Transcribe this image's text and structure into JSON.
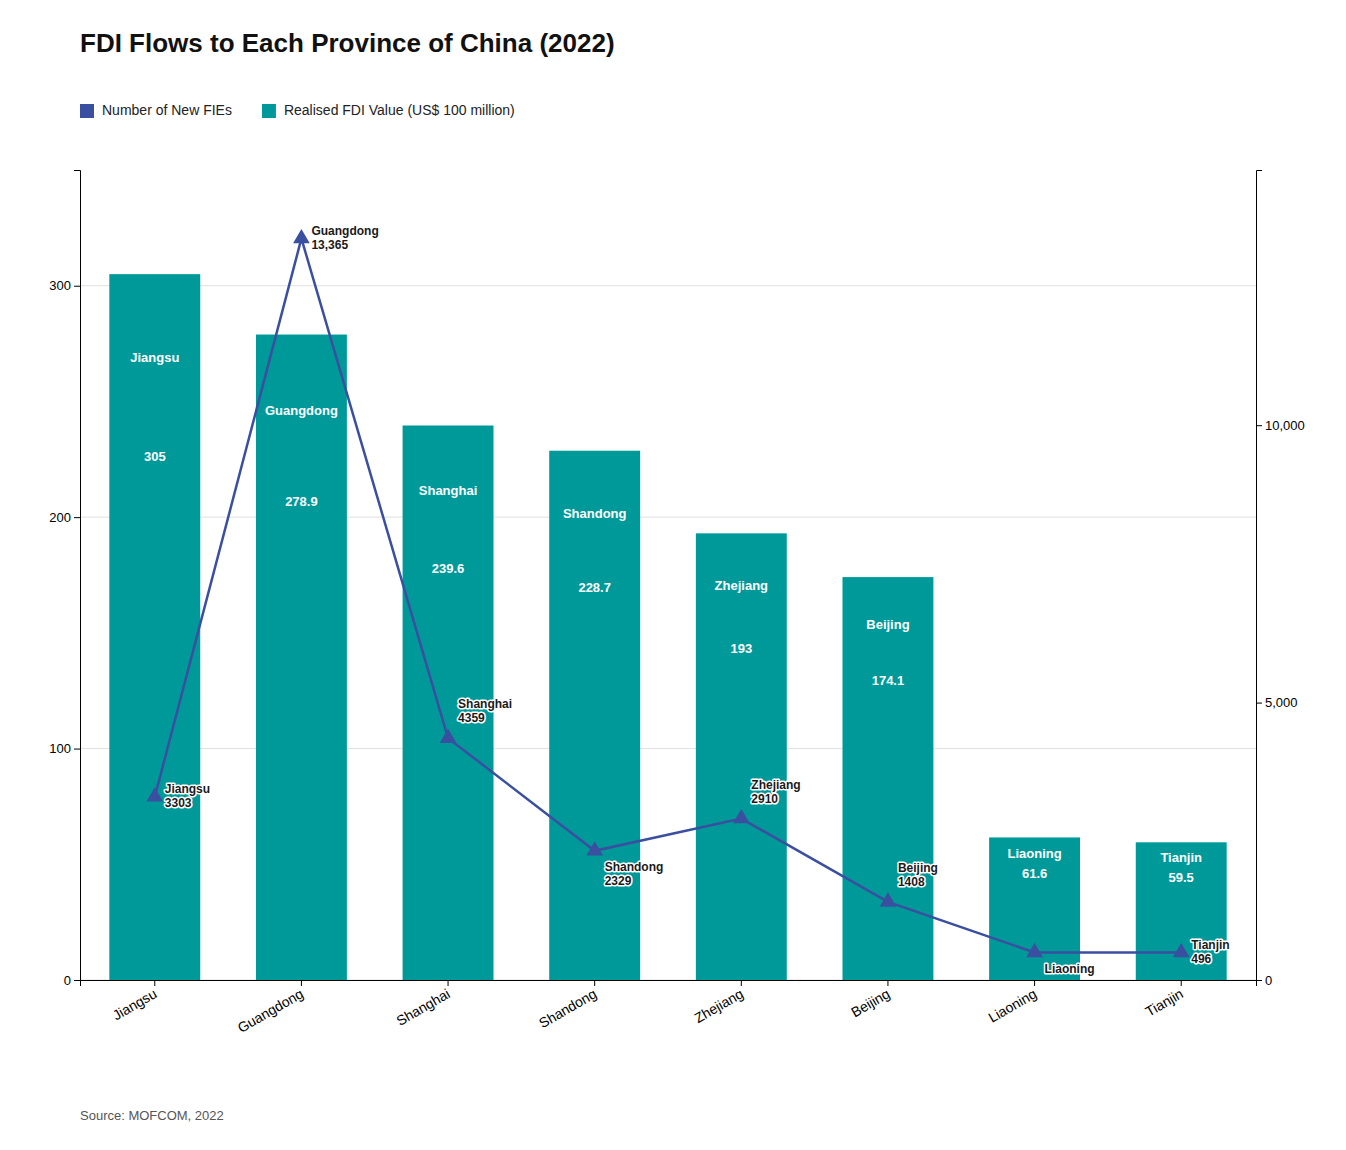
{
  "chart_data": {
    "type": "bar",
    "title": "FDI Flows to Each Province of China (2022)",
    "source": "Source: MOFCOM, 2022",
    "categories": [
      "Jiangsu",
      "Guangdong",
      "Shanghai",
      "Shandong",
      "Zhejiang",
      "Beijing",
      "Liaoning",
      "Tianjin"
    ],
    "series": [
      {
        "name": "Number of New FIEs",
        "type": "line",
        "axis": "y2",
        "color": "#3A4FA0",
        "marker": "triangle",
        "values": [
          3303,
          13365,
          4359,
          2329,
          2910,
          1408,
          496,
          496
        ]
      },
      {
        "name": "Realised FDI Value (US$ 100 million)",
        "type": "bar",
        "color": "#009999",
        "data_labels": true,
        "values": [
          305,
          278.9,
          239.6,
          228.7,
          193,
          174.1,
          61.6,
          59.5
        ]
      }
    ],
    "ylim": [
      0,
      350
    ],
    "yticks": [
      0,
      100,
      200,
      300
    ],
    "y2lim": [
      0,
      14600
    ],
    "y2ticks": [
      0,
      {
        "value": 5000,
        "label": "5,000"
      },
      {
        "value": 10000,
        "label": "10,000"
      }
    ],
    "grid": true,
    "legend": "upper left",
    "annotations": [
      {
        "text": "Jiangsu\n3303",
        "x": "Jiangsu"
      },
      {
        "text": "Guangdong\n13,365",
        "x": "Guangdong"
      },
      {
        "text": "Shanghai\n4359",
        "x": "Shanghai"
      },
      {
        "text": "Shandong\n2329",
        "x": "Shandong"
      },
      {
        "text": "Zhejiang\n2910",
        "x": "Zhejiang"
      },
      {
        "text": "Beijing\n1408",
        "x": "Beijing"
      },
      {
        "text": "Liaoning",
        "x": "Liaoning"
      },
      {
        "text": "Tianjin\n496",
        "x": "Tianjin"
      }
    ]
  }
}
